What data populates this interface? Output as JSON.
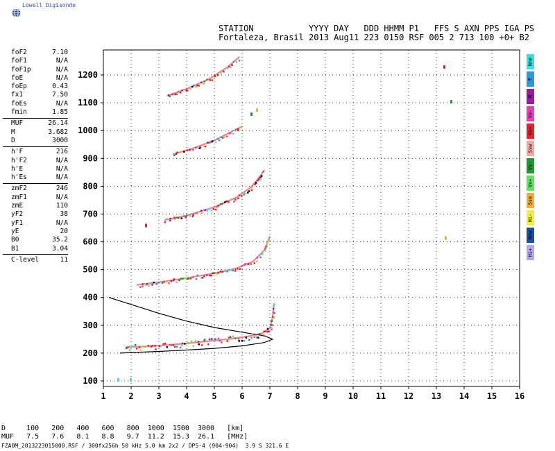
{
  "logo": {
    "text": "Lowell Digisonde",
    "icon": "globe-icon"
  },
  "header": {
    "line1": "STATION           YYYY DAY   DDD HHMM P1   FFS S AXN PPS IGA PS",
    "line2": "Fortaleza, Brasil 2013 Aug11 223 0150 RSF 005 2 713 100 +0+ B2"
  },
  "params": {
    "groups": [
      [
        {
          "label": "foF2",
          "value": "7.10"
        },
        {
          "label": "foF1",
          "value": "N/A"
        },
        {
          "label": "foF1p",
          "value": "N/A"
        },
        {
          "label": "foE",
          "value": "N/A"
        },
        {
          "label": "foEp",
          "value": "0.43"
        },
        {
          "label": "fxI",
          "value": "7.50"
        },
        {
          "label": "foEs",
          "value": "N/A"
        },
        {
          "label": "fmin",
          "value": "1.85"
        }
      ],
      [
        {
          "label": "MUF",
          "value": "26.14"
        },
        {
          "label": "M",
          "value": "3.682"
        },
        {
          "label": "D",
          "value": "3000"
        }
      ],
      [
        {
          "label": "h'F",
          "value": "216"
        },
        {
          "label": "h'F2",
          "value": "N/A"
        },
        {
          "label": "h'E",
          "value": "N/A"
        },
        {
          "label": "h'Es",
          "value": "N/A"
        }
      ],
      [
        {
          "label": "zmF2",
          "value": "246"
        },
        {
          "label": "zmF1",
          "value": "N/A"
        },
        {
          "label": "zmE",
          "value": "110"
        },
        {
          "label": "yF2",
          "value": "38"
        },
        {
          "label": "yF1",
          "value": "N/A"
        },
        {
          "label": "yE",
          "value": "20"
        },
        {
          "label": "B0",
          "value": "35.2"
        },
        {
          "label": "B1",
          "value": "3.04"
        }
      ],
      [
        {
          "label": "C-level",
          "value": "11"
        }
      ]
    ]
  },
  "legend": [
    {
      "label": "Nne",
      "color": "#33e3e3"
    },
    {
      "label": "E",
      "color": "#2f98d8"
    },
    {
      "label": "W",
      "color": "#9a1aa8"
    },
    {
      "label": "Vo-",
      "color": "#e83fb8"
    },
    {
      "label": "Vo+",
      "color": "#e8202a"
    },
    {
      "label": "Ssw",
      "color": "#f2a8a0"
    },
    {
      "label": "Vx-",
      "color": "#1e9b2e"
    },
    {
      "label": "Vx+",
      "color": "#5ee45e"
    },
    {
      "label": "Sse",
      "color": "#f2ad32"
    },
    {
      "label": "Hi-",
      "color": "#f2ef3a"
    },
    {
      "label": "Nnw",
      "color": "#1a4fa6"
    },
    {
      "label": "Hi+",
      "color": "#b5a8f2"
    }
  ],
  "footer": {
    "line1": "D     100   200   400   600   800  1000  1500  3000   [km]",
    "line2": "MUF   7.5   7.6   8.1   8.8   9.7  11.2  15.3  26.1   [MHz]",
    "file": "FZA0M_2013223015000.RSF / 300fx256h 50 kHz 5.0 km 2x2 / DPS-4 (904-904)  3.9 S 321.6 E"
  },
  "chart_data": {
    "type": "scatter",
    "xlim": [
      1,
      16
    ],
    "ylim": [
      80,
      1290
    ],
    "xticks": [
      "1",
      "2",
      "3",
      "4",
      "5",
      "6",
      "7",
      "8",
      "9",
      "10",
      "11",
      "12",
      "13",
      "14",
      "15",
      "16"
    ],
    "yticks": [
      "100",
      "200",
      "300",
      "400",
      "500",
      "600",
      "700",
      "800",
      "900",
      "1000",
      "1100",
      "1200"
    ],
    "grid": true,
    "traces": [
      {
        "name": "",
        "points": [
          [
            1.8,
            222
          ],
          [
            2.5,
            224
          ],
          [
            3.2,
            228
          ],
          [
            4.0,
            235
          ],
          [
            4.8,
            243
          ],
          [
            5.5,
            250
          ],
          [
            6.2,
            260
          ],
          [
            6.7,
            270
          ],
          [
            7.0,
            290
          ],
          [
            7.1,
            330
          ],
          [
            7.15,
            380
          ]
        ]
      },
      {
        "name": "",
        "points": [
          [
            2.2,
            445
          ],
          [
            3.0,
            455
          ],
          [
            4.0,
            470
          ],
          [
            5.0,
            487
          ],
          [
            5.8,
            505
          ],
          [
            6.4,
            530
          ],
          [
            6.8,
            570
          ],
          [
            7.0,
            620
          ]
        ]
      },
      {
        "name": "",
        "points": [
          [
            3.2,
            678
          ],
          [
            4.0,
            695
          ],
          [
            5.0,
            725
          ],
          [
            5.8,
            760
          ],
          [
            6.3,
            795
          ],
          [
            6.6,
            830
          ],
          [
            6.8,
            858
          ]
        ]
      },
      {
        "name": "",
        "points": [
          [
            3.5,
            915
          ],
          [
            4.2,
            935
          ],
          [
            5.0,
            965
          ],
          [
            5.5,
            990
          ],
          [
            6.0,
            1015
          ]
        ]
      },
      {
        "name": "",
        "points": [
          [
            3.3,
            1125
          ],
          [
            4.0,
            1150
          ],
          [
            4.8,
            1185
          ],
          [
            5.5,
            1230
          ],
          [
            5.9,
            1265
          ]
        ]
      },
      {
        "name": "",
        "points": [
          [
            1.5,
            110
          ],
          [
            1.95,
            110
          ],
          [
            2.5,
            665
          ],
          [
            6.3,
            1065
          ],
          [
            6.5,
            1080
          ],
          [
            13.25,
            1235
          ],
          [
            13.5,
            1110
          ],
          [
            13.3,
            620
          ]
        ]
      }
    ],
    "profile_curves": [
      {
        "name": "",
        "points": [
          [
            1.2,
            400
          ],
          [
            2.0,
            375
          ],
          [
            3.0,
            343
          ],
          [
            4.0,
            315
          ],
          [
            5.0,
            292
          ],
          [
            6.0,
            275
          ],
          [
            6.8,
            262
          ],
          [
            7.1,
            250
          ],
          [
            6.8,
            238
          ],
          [
            6.0,
            226
          ],
          [
            5.0,
            217
          ],
          [
            4.0,
            211
          ],
          [
            3.0,
            206
          ],
          [
            2.0,
            202
          ],
          [
            1.6,
            200
          ]
        ]
      }
    ]
  }
}
